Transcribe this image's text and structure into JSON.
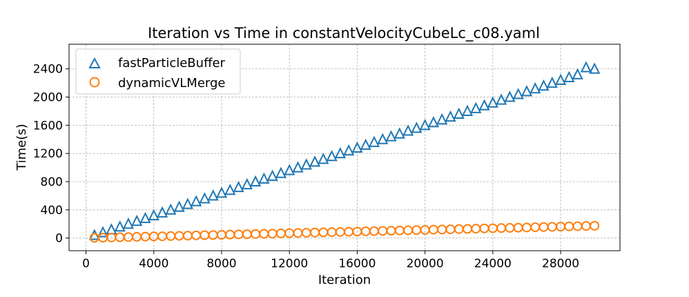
{
  "chart_data": {
    "type": "scatter",
    "title": "Iteration vs Time in constantVelocityCubeLc_c08.yaml",
    "xlabel": "Iteration",
    "ylabel": "Time(s)",
    "xlim": [
      -1000,
      31500
    ],
    "ylim": [
      -180,
      2750
    ],
    "xticks": [
      0,
      4000,
      8000,
      12000,
      16000,
      20000,
      24000,
      28000
    ],
    "yticks": [
      0,
      400,
      800,
      1200,
      1600,
      2000,
      2400
    ],
    "grid": true,
    "legend_position": "top-left",
    "series": [
      {
        "name": "fastParticleBuffer",
        "marker": "triangle",
        "color": "#1f77b4",
        "x": [
          500,
          1000,
          1500,
          2000,
          2500,
          3000,
          3500,
          4000,
          4500,
          5000,
          5500,
          6000,
          6500,
          7000,
          7500,
          8000,
          8500,
          9000,
          9500,
          10000,
          10500,
          11000,
          11500,
          12000,
          12500,
          13000,
          13500,
          14000,
          14500,
          15000,
          15500,
          16000,
          16500,
          17000,
          17500,
          18000,
          18500,
          19000,
          19500,
          20000,
          20500,
          21000,
          21500,
          22000,
          22500,
          23000,
          23500,
          24000,
          24500,
          25000,
          25500,
          26000,
          26500,
          27000,
          27500,
          28000,
          28500,
          29000,
          29500,
          30000
        ],
        "y": [
          40,
          80,
          120,
          160,
          200,
          240,
          280,
          320,
          360,
          400,
          440,
          480,
          520,
          560,
          600,
          640,
          680,
          720,
          760,
          800,
          840,
          880,
          920,
          960,
          1000,
          1040,
          1080,
          1120,
          1160,
          1200,
          1240,
          1280,
          1320,
          1360,
          1400,
          1440,
          1480,
          1520,
          1560,
          1600,
          1640,
          1680,
          1720,
          1760,
          1800,
          1840,
          1880,
          1920,
          1960,
          2000,
          2040,
          2080,
          2120,
          2160,
          2200,
          2240,
          2280,
          2320,
          2420,
          2400
        ]
      },
      {
        "name": "dynamicVLMerge",
        "marker": "circle",
        "color": "#ff7f0e",
        "x": [
          500,
          1000,
          1500,
          2000,
          2500,
          3000,
          3500,
          4000,
          4500,
          5000,
          5500,
          6000,
          6500,
          7000,
          7500,
          8000,
          8500,
          9000,
          9500,
          10000,
          10500,
          11000,
          11500,
          12000,
          12500,
          13000,
          13500,
          14000,
          14500,
          15000,
          15500,
          16000,
          16500,
          17000,
          17500,
          18000,
          18500,
          19000,
          19500,
          20000,
          20500,
          21000,
          21500,
          22000,
          22500,
          23000,
          23500,
          24000,
          24500,
          25000,
          25500,
          26000,
          26500,
          27000,
          27500,
          28000,
          28500,
          29000,
          29500,
          30000
        ],
        "y": [
          3,
          5,
          8,
          11,
          14,
          17,
          20,
          23,
          25,
          28,
          31,
          34,
          37,
          40,
          43,
          46,
          49,
          52,
          54,
          57,
          60,
          63,
          66,
          69,
          72,
          75,
          78,
          81,
          84,
          86,
          89,
          92,
          95,
          98,
          101,
          104,
          107,
          110,
          113,
          115,
          118,
          121,
          124,
          127,
          130,
          133,
          136,
          139,
          142,
          144,
          147,
          150,
          153,
          156,
          159,
          162,
          165,
          168,
          171,
          174
        ]
      }
    ]
  }
}
